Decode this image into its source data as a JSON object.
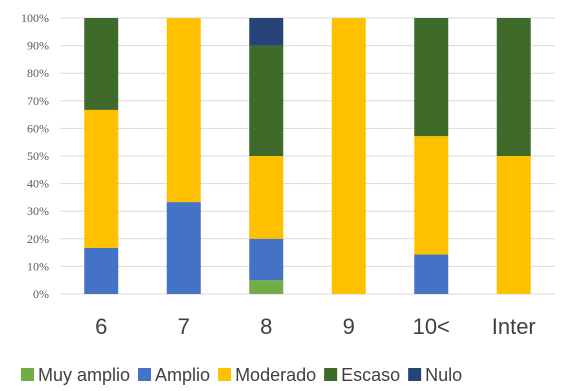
{
  "chart_data": {
    "type": "bar",
    "stacked": true,
    "percent": true,
    "categories": [
      "6",
      "7",
      "8",
      "9",
      "10<",
      "Inter"
    ],
    "y_ticks": [
      "0%",
      "10%",
      "20%",
      "30%",
      "40%",
      "50%",
      "60%",
      "70%",
      "80%",
      "90%",
      "100%"
    ],
    "ylim": [
      0,
      100
    ],
    "grid": true,
    "legend_position": "bottom",
    "series": [
      {
        "name": "Muy amplio",
        "color": "#70AD47",
        "values": [
          0,
          0,
          5,
          0,
          0,
          0
        ]
      },
      {
        "name": "Amplio",
        "color": "#4472C4",
        "values": [
          16.7,
          33.3,
          15,
          0,
          14.3,
          0
        ]
      },
      {
        "name": "Moderado",
        "color": "#FFC000",
        "values": [
          50,
          66.7,
          30,
          100,
          42.9,
          50
        ]
      },
      {
        "name": "Escaso",
        "color": "#3F6B2A",
        "values": [
          33.3,
          0,
          40,
          0,
          42.8,
          50
        ]
      },
      {
        "name": "Nulo",
        "color": "#264478",
        "values": [
          0,
          0,
          10,
          0,
          0,
          0
        ]
      }
    ]
  }
}
